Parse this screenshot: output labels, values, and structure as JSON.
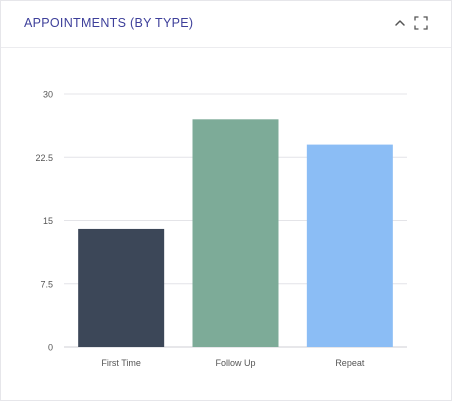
{
  "card": {
    "title": "APPOINTMENTS (BY TYPE)",
    "icons": {
      "collapse": "chevron-up-icon",
      "expand": "expand-fullscreen-icon"
    },
    "title_color": "#3d3f9a"
  },
  "chart_data": {
    "type": "bar",
    "categories": [
      "First Time",
      "Follow Up",
      "Repeat"
    ],
    "values": [
      14,
      27,
      24
    ],
    "colors": [
      "#3c4758",
      "#7dab98",
      "#8bbdf5"
    ],
    "yticks": [
      "0",
      "7.5",
      "15",
      "22.5",
      "30"
    ],
    "ylim": [
      0,
      30
    ],
    "grid": true,
    "legend": "none"
  }
}
